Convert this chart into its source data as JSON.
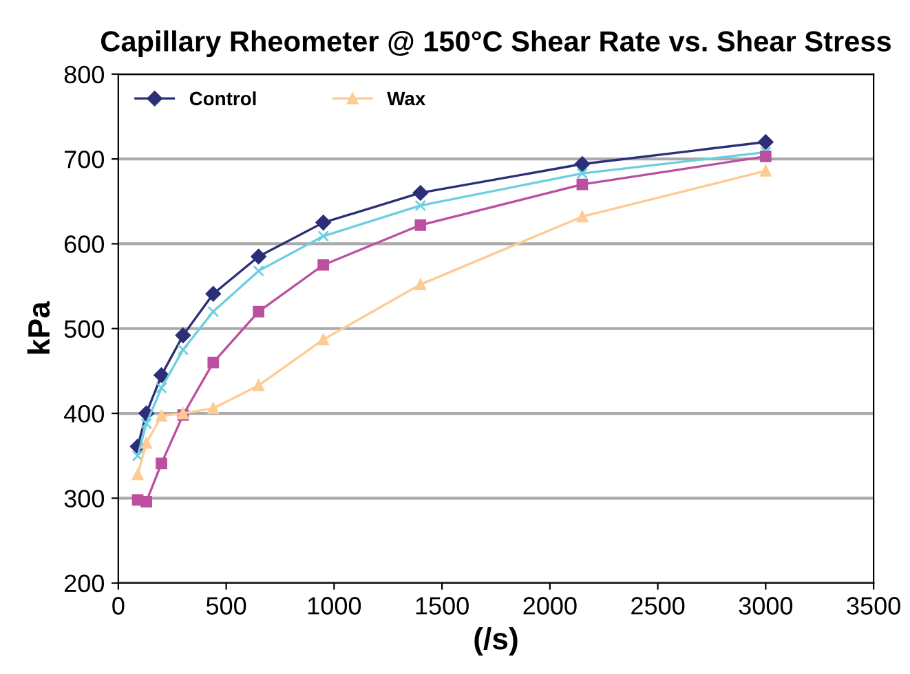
{
  "chart_data": {
    "type": "line",
    "title": "Capillary Rheometer @ 150°C Shear Rate vs. Shear Stress",
    "xlabel": "(/s)",
    "ylabel": "kPa",
    "x": [
      90,
      130,
      200,
      300,
      440,
      650,
      950,
      1400,
      2150,
      3000
    ],
    "series": [
      {
        "name": "Control",
        "color": "#2b2f77",
        "marker": "diamond",
        "values": [
          361,
          400,
          445,
          492,
          541,
          585,
          625,
          660,
          694,
          720
        ]
      },
      {
        "color": "#6ccfdf",
        "marker": "cross",
        "values": [
          350,
          388,
          430,
          475,
          520,
          568,
          609,
          645,
          683,
          708
        ]
      },
      {
        "color": "#bb4fa0",
        "marker": "square",
        "values": [
          298,
          296,
          341,
          398,
          460,
          520,
          575,
          622,
          670,
          703
        ]
      },
      {
        "name": "Wax",
        "color": "#fdcb93",
        "marker": "triangle",
        "values": [
          328,
          365,
          397,
          400,
          406,
          433,
          487,
          552,
          632,
          686
        ]
      }
    ],
    "xlim": [
      0,
      3500
    ],
    "xticks": [
      0,
      500,
      1000,
      1500,
      2000,
      2500,
      3000,
      3500
    ],
    "ylim": [
      200,
      800
    ],
    "yticks": [
      200,
      300,
      400,
      500,
      600,
      700,
      800
    ],
    "grid": "y",
    "legend": "top left"
  }
}
